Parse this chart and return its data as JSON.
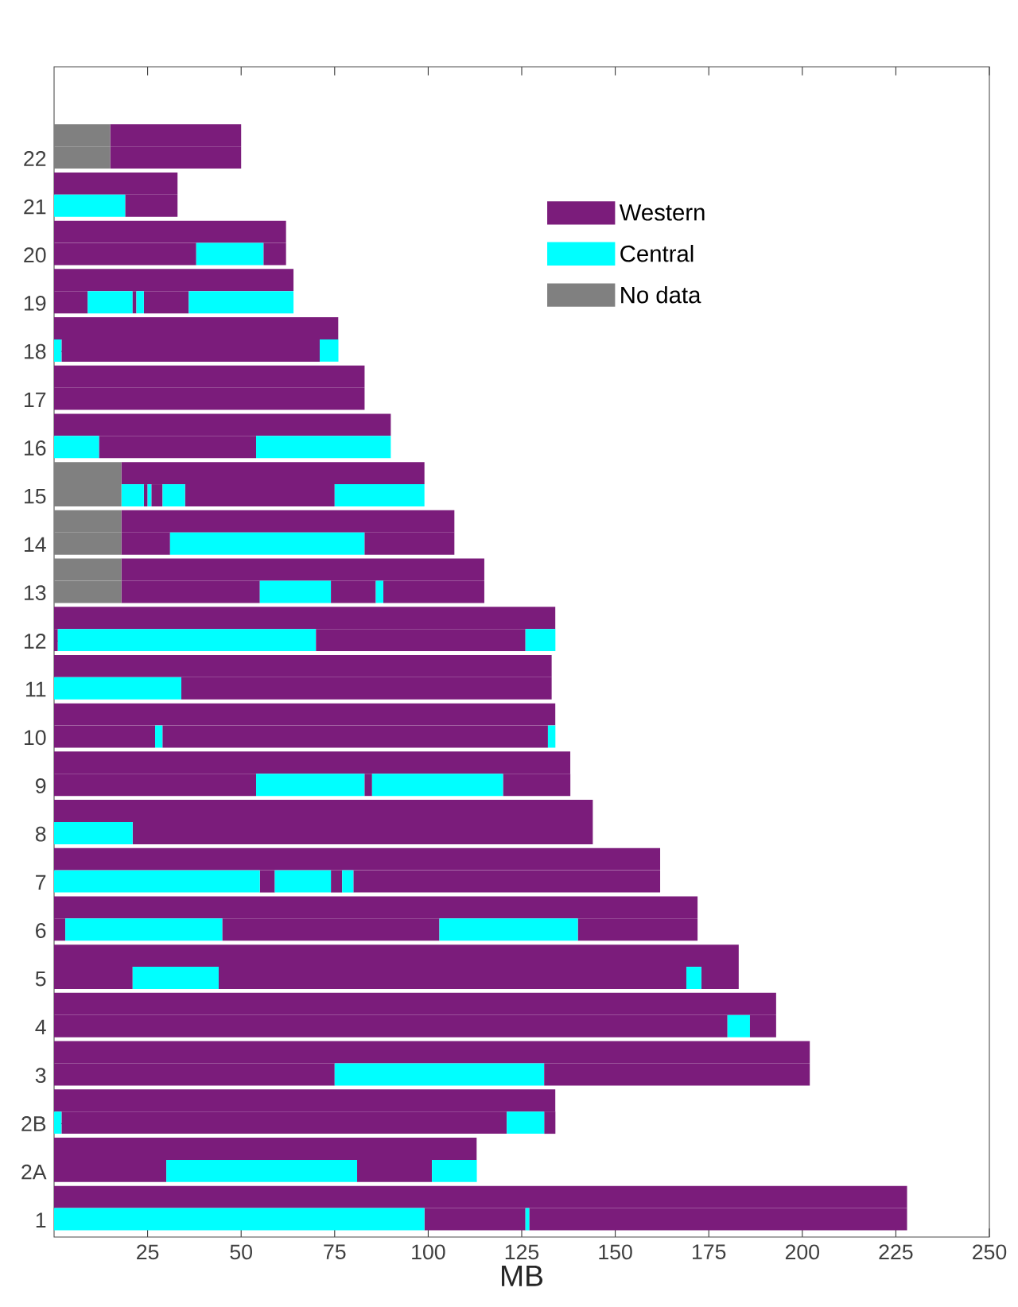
{
  "chart_data": {
    "type": "bar",
    "orientation": "horizontal",
    "xlabel": "MB",
    "xlim": [
      0,
      250
    ],
    "xticks": [
      25,
      50,
      75,
      100,
      125,
      150,
      175,
      200,
      225,
      250
    ],
    "legend": "top right",
    "categories": [
      null,
      "22",
      null,
      "21",
      null,
      "20",
      null,
      "19",
      null,
      "18",
      null,
      "17",
      null,
      "16",
      null,
      "15",
      null,
      "14",
      null,
      "13",
      null,
      "12",
      null,
      "11",
      null,
      "10",
      null,
      "9",
      null,
      "8",
      null,
      "7",
      null,
      "6",
      null,
      "5",
      null,
      "4",
      null,
      "3",
      null,
      "2B",
      null,
      "2A",
      null,
      "1"
    ],
    "series": [
      {
        "name": "Western",
        "color": "#7b1c7b",
        "base": [
          15,
          15,
          0,
          19,
          0,
          0,
          0,
          0,
          0,
          2,
          0,
          0,
          0,
          12,
          18,
          24,
          18,
          18,
          18,
          18,
          0,
          0,
          0,
          34,
          0,
          0,
          0,
          0,
          0,
          21,
          0,
          55,
          0,
          0,
          0,
          0,
          0,
          0,
          0,
          0,
          0,
          2,
          0,
          0,
          0,
          99
        ],
        "values": [
          35,
          35,
          33,
          14,
          62,
          38,
          64,
          9,
          76,
          69,
          83,
          83,
          90,
          42,
          81,
          1,
          89,
          13,
          97,
          37,
          134,
          1,
          133,
          99,
          134,
          27,
          138,
          54,
          144,
          123,
          162,
          4,
          172,
          3,
          183,
          21,
          193,
          180,
          202,
          75,
          134,
          119,
          113,
          30,
          228,
          27
        ]
      },
      {
        "name": "Central",
        "color": "#00ffff",
        "base": [
          null,
          null,
          null,
          0,
          null,
          38,
          null,
          9,
          null,
          0,
          null,
          null,
          null,
          0,
          null,
          18,
          null,
          31,
          null,
          55,
          null,
          1,
          null,
          0,
          null,
          27,
          null,
          54,
          null,
          0,
          null,
          0,
          null,
          3,
          null,
          21,
          null,
          180,
          null,
          75,
          null,
          0,
          null,
          30,
          null,
          0
        ],
        "values": [
          null,
          null,
          null,
          19,
          null,
          18,
          null,
          12,
          null,
          2,
          null,
          null,
          null,
          12,
          null,
          6,
          null,
          52,
          null,
          19,
          null,
          69,
          null,
          34,
          null,
          2,
          null,
          29,
          null,
          21,
          null,
          55,
          null,
          42,
          null,
          23,
          null,
          6,
          null,
          56,
          null,
          2,
          null,
          51,
          null,
          99
        ]
      },
      {
        "name": "No data",
        "color": "#808080",
        "base": [
          0,
          0,
          null,
          null,
          null,
          null,
          null,
          null,
          null,
          null,
          null,
          null,
          null,
          null,
          0,
          0,
          0,
          0,
          0,
          0,
          null,
          null,
          null,
          null,
          null,
          null,
          null,
          null,
          null,
          null,
          null,
          null,
          null,
          null,
          null,
          null,
          null,
          null,
          null,
          null,
          null,
          null,
          null,
          null,
          null,
          null
        ],
        "values": [
          15,
          15,
          null,
          null,
          null,
          null,
          null,
          null,
          null,
          null,
          null,
          null,
          null,
          null,
          18,
          18,
          18,
          18,
          18,
          18,
          null,
          null,
          null,
          null,
          null,
          null,
          null,
          null,
          null,
          null,
          null,
          null,
          null,
          null,
          null,
          null,
          null,
          null,
          null,
          null,
          null,
          null,
          null,
          null,
          null,
          null
        ]
      },
      {
        "color": "#7b1c7b",
        "base": [
          null,
          null,
          null,
          null,
          null,
          56,
          null,
          21,
          null,
          null,
          null,
          null,
          null,
          null,
          null,
          26,
          null,
          83,
          null,
          74,
          null,
          70,
          null,
          null,
          null,
          29,
          null,
          83,
          null,
          null,
          null,
          74,
          null,
          45,
          null,
          44,
          null,
          186,
          null,
          131,
          null,
          131,
          null,
          81,
          null,
          127
        ],
        "values": [
          null,
          null,
          null,
          null,
          null,
          6,
          null,
          1,
          null,
          null,
          null,
          null,
          null,
          null,
          null,
          3,
          null,
          24,
          null,
          12,
          null,
          56,
          null,
          null,
          null,
          103,
          null,
          2,
          null,
          null,
          null,
          3,
          null,
          58,
          null,
          125,
          null,
          7,
          null,
          71,
          null,
          3,
          null,
          20,
          null,
          101
        ]
      },
      {
        "color": "#7b1c7b",
        "base": [
          null,
          null,
          null,
          null,
          null,
          null,
          null,
          24,
          null,
          null,
          null,
          null,
          null,
          null,
          null,
          35,
          null,
          null,
          null,
          88,
          null,
          null,
          null,
          null,
          null,
          null,
          null,
          120,
          null,
          null,
          null,
          80,
          null,
          140,
          null,
          173,
          null,
          null,
          null,
          null,
          null,
          null,
          null,
          null,
          null,
          null
        ],
        "values": [
          null,
          null,
          null,
          null,
          null,
          null,
          null,
          12,
          null,
          null,
          null,
          null,
          null,
          null,
          null,
          40,
          null,
          null,
          null,
          27,
          null,
          null,
          null,
          null,
          null,
          null,
          null,
          18,
          null,
          null,
          null,
          82,
          null,
          32,
          null,
          10,
          null,
          null,
          null,
          null,
          null,
          null,
          null,
          null,
          null,
          null
        ]
      },
      {
        "color": "#00ffff",
        "base": [
          null,
          null,
          null,
          null,
          null,
          null,
          null,
          22,
          null,
          71,
          null,
          null,
          null,
          54,
          null,
          25,
          null,
          null,
          null,
          86,
          null,
          126,
          null,
          null,
          null,
          132,
          null,
          85,
          null,
          null,
          null,
          59,
          null,
          103,
          null,
          169,
          null,
          null,
          null,
          null,
          null,
          121,
          null,
          101,
          null,
          126
        ],
        "values": [
          null,
          null,
          null,
          null,
          null,
          null,
          null,
          2,
          null,
          5,
          null,
          null,
          null,
          36,
          null,
          1,
          null,
          null,
          null,
          2,
          null,
          8,
          null,
          null,
          null,
          2,
          null,
          35,
          null,
          null,
          null,
          15,
          null,
          37,
          null,
          4,
          null,
          null,
          null,
          null,
          null,
          10,
          null,
          12,
          null,
          1
        ]
      },
      {
        "color": "#00ffff",
        "base": [
          null,
          null,
          null,
          null,
          null,
          null,
          null,
          36,
          null,
          null,
          null,
          null,
          null,
          null,
          null,
          29,
          null,
          null,
          null,
          null,
          null,
          null,
          null,
          null,
          null,
          null,
          null,
          null,
          null,
          null,
          null,
          77,
          null,
          null,
          null,
          null,
          null,
          null,
          null,
          null,
          null,
          null,
          null,
          null,
          null,
          null
        ],
        "values": [
          null,
          null,
          null,
          null,
          null,
          null,
          null,
          28,
          null,
          null,
          null,
          null,
          null,
          null,
          null,
          6,
          null,
          null,
          null,
          null,
          null,
          null,
          null,
          null,
          null,
          null,
          null,
          null,
          null,
          null,
          null,
          3,
          null,
          null,
          null,
          null,
          null,
          null,
          null,
          null,
          null,
          null,
          null,
          null,
          null,
          null
        ]
      },
      {
        "color": "#00ffff",
        "base": [
          null,
          null,
          null,
          null,
          null,
          null,
          null,
          null,
          null,
          null,
          null,
          null,
          null,
          null,
          null,
          75,
          null,
          null,
          null,
          null,
          null,
          null,
          null,
          null,
          null,
          null,
          null,
          null,
          null,
          null,
          null,
          null,
          null,
          null,
          null,
          null,
          null,
          null,
          null,
          null,
          null,
          null,
          null,
          null,
          null,
          null
        ],
        "values": [
          null,
          null,
          null,
          null,
          null,
          null,
          null,
          null,
          null,
          null,
          null,
          null,
          null,
          null,
          null,
          24,
          null,
          null,
          null,
          null,
          null,
          null,
          null,
          null,
          null,
          null,
          null,
          null,
          null,
          null,
          null,
          null,
          null,
          null,
          null,
          null,
          null,
          null,
          null,
          null,
          null,
          null,
          null,
          null,
          null,
          null
        ]
      }
    ]
  }
}
